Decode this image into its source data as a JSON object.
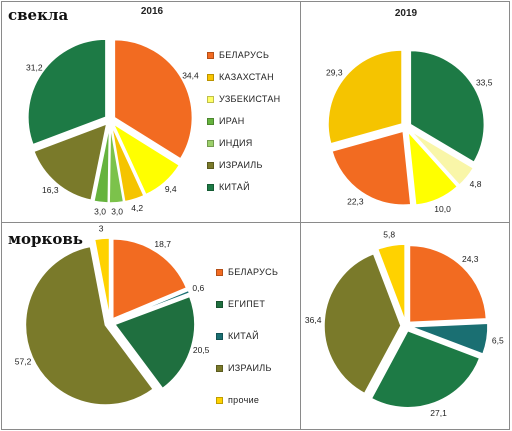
{
  "rows": {
    "beet": "свекла",
    "carrot": "морковь"
  },
  "colors": {
    "belarus": "#f26b21",
    "kazakhstan": "#f5c400",
    "uzbekistan": "#ffff00",
    "iran": "#f9f6a8",
    "india": "#7cc24b",
    "egypt": "#1f6f3f",
    "israel": "#7a7a2a",
    "china": "#1d7a45",
    "china_teal": "#1a6f72",
    "other": "#ffd200",
    "legend_belarus": "#f26b21",
    "legend_kazakhstan": "#f9c400",
    "legend_uzbekistan": "#ffff66",
    "legend_iran": "#66b33e",
    "legend_india": "#9bcf6a",
    "legend_israel": "#7a7a2a",
    "legend_china": "#1d7a45"
  },
  "legends": {
    "beet": [
      {
        "label": "БЕЛАРУСЬ",
        "color": "#f26b21"
      },
      {
        "label": "КАЗАХСТАН",
        "color": "#f9c400"
      },
      {
        "label": "УЗБЕКИСТАН",
        "color": "#ffff66"
      },
      {
        "label": "ИРАН",
        "color": "#66b33e"
      },
      {
        "label": "ИНДИЯ",
        "color": "#9bcf6a"
      },
      {
        "label": "ИЗРАИЛЬ",
        "color": "#7a7a2a"
      },
      {
        "label": "КИТАЙ",
        "color": "#1d7a45"
      }
    ],
    "carrot": [
      {
        "label": "БЕЛАРУСЬ",
        "color": "#f26b21"
      },
      {
        "label": "ЕГИПЕТ",
        "color": "#1f6f3f"
      },
      {
        "label": "КИТАЙ",
        "color": "#1a6f72"
      },
      {
        "label": "ИЗРАИЛЬ",
        "color": "#7a7a2a"
      },
      {
        "label": "прочие",
        "color": "#ffd200"
      }
    ]
  },
  "chart_data": [
    {
      "type": "pie",
      "title": "2016",
      "group": "свекла",
      "slices": [
        {
          "label": "34,4",
          "value": 34.4,
          "color": "#f26b21"
        },
        {
          "label": "9,4",
          "value": 9.4,
          "color": "#ffff00"
        },
        {
          "label": "4,2",
          "value": 4.2,
          "color": "#f5c400"
        },
        {
          "label": "3,0",
          "value": 3.0,
          "color": "#7cc24b"
        },
        {
          "label": "3,0",
          "value": 3.0,
          "color": "#66b33e"
        },
        {
          "label": "16,3",
          "value": 16.3,
          "color": "#7a7a2a"
        },
        {
          "label": "31,2",
          "value": 31.2,
          "color": "#1d7a45"
        }
      ]
    },
    {
      "type": "pie",
      "title": "2019",
      "group": "свекла",
      "slices": [
        {
          "label": "33,5",
          "value": 33.5,
          "color": "#1d7a45"
        },
        {
          "label": "4,8",
          "value": 4.8,
          "color": "#f9f6a8"
        },
        {
          "label": "10,0",
          "value": 10.0,
          "color": "#ffff00"
        },
        {
          "label": "22,3",
          "value": 22.3,
          "color": "#f26b21"
        },
        {
          "label": "29,3",
          "value": 29.3,
          "color": "#f5c400"
        }
      ]
    },
    {
      "type": "pie",
      "title": "",
      "group": "морковь",
      "slices": [
        {
          "label": "18,7",
          "value": 18.7,
          "color": "#f26b21"
        },
        {
          "label": "0,6",
          "value": 0.6,
          "color": "#1a6f72"
        },
        {
          "label": "20,5",
          "value": 20.5,
          "color": "#1f6f3f"
        },
        {
          "label": "57,2",
          "value": 57.2,
          "color": "#7a7a2a"
        },
        {
          "label": "3",
          "value": 3.0,
          "color": "#ffd200"
        }
      ]
    },
    {
      "type": "pie",
      "title": "",
      "group": "морковь",
      "slices": [
        {
          "label": "24,3",
          "value": 24.3,
          "color": "#f26b21"
        },
        {
          "label": "6,5",
          "value": 6.5,
          "color": "#1a6f72"
        },
        {
          "label": "27,1",
          "value": 27.1,
          "color": "#1d7a45"
        },
        {
          "label": "36,4",
          "value": 36.4,
          "color": "#7a7a2a"
        },
        {
          "label": "5,8",
          "value": 5.8,
          "color": "#ffd200"
        }
      ]
    }
  ]
}
